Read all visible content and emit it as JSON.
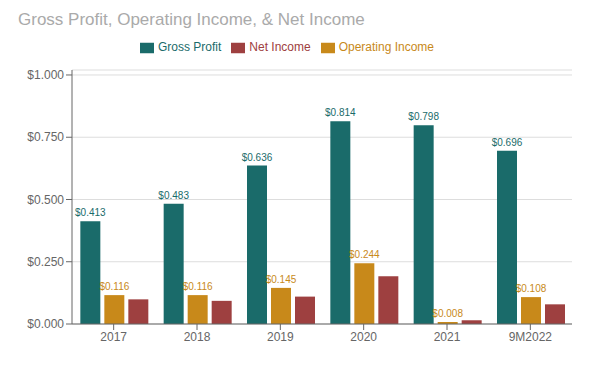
{
  "chart_data": {
    "type": "bar",
    "title": "Gross Profit, Operating Income, & Net Income",
    "categories": [
      "2017",
      "2018",
      "2019",
      "2020",
      "2021",
      "9M2022"
    ],
    "series": [
      {
        "name": "Gross Profit",
        "color": "#1a6b6a",
        "values": [
          0.413,
          0.483,
          0.636,
          0.814,
          0.798,
          0.696
        ],
        "value_labels": [
          "$0.413",
          "$0.483",
          "$0.636",
          "$0.814",
          "$0.798",
          "$0.696"
        ]
      },
      {
        "name": "Operating Income",
        "color": "#c8891a",
        "values": [
          0.116,
          0.116,
          0.145,
          0.244,
          0.008,
          0.108
        ],
        "value_labels": [
          "$0.116",
          "$0.116",
          "$0.145",
          "$0.244",
          "$0.008",
          "$0.108"
        ]
      },
      {
        "name": "Net Income",
        "color": "#9e4040",
        "values": [
          0.099,
          0.093,
          0.11,
          0.192,
          0.015,
          0.079
        ]
      }
    ],
    "ylim": [
      0,
      1.02
    ],
    "yticks": [
      {
        "value": 0.0,
        "label": "$0.000"
      },
      {
        "value": 0.25,
        "label": "$0.250"
      },
      {
        "value": 0.5,
        "label": "$0.500"
      },
      {
        "value": 0.75,
        "label": "$0.750"
      },
      {
        "value": 1.0,
        "label": "$1.000"
      }
    ],
    "grid": true,
    "data_labels": true
  }
}
